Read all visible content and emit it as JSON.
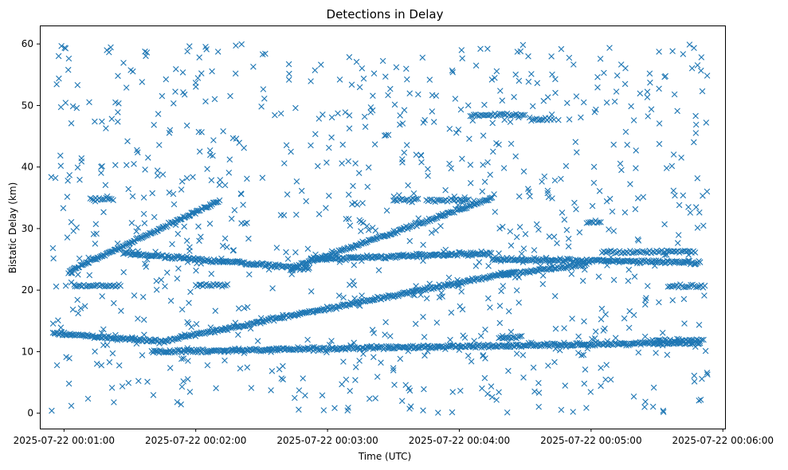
{
  "chart_data": {
    "type": "scatter",
    "title": "Detections in Delay",
    "xlabel": "Time (UTC)",
    "ylabel": "Bistatic Delay (km)",
    "marker": "x",
    "color": "#1f77b4",
    "grid": false,
    "legend": "none",
    "x_axis_type": "datetime",
    "xlim": [
      "2025-07-22 00:00:49",
      "2025-07-22 00:06:01"
    ],
    "ylim": [
      -2.5,
      63
    ],
    "x_ticks": [
      "2025-07-22 00:01:00",
      "2025-07-22 00:02:00",
      "2025-07-22 00:03:00",
      "2025-07-22 00:04:00",
      "2025-07-22 00:05:00",
      "2025-07-22 00:06:00"
    ],
    "y_ticks": [
      0,
      10,
      20,
      30,
      40,
      50,
      60
    ],
    "tracks": [
      {
        "x_start": "2025-07-22 00:01:02",
        "x_end": "2025-07-22 00:02:11",
        "y_start": 23.0,
        "y_end": 34.5
      },
      {
        "x_start": "2025-07-22 00:02:43",
        "x_end": "2025-07-22 00:04:15",
        "y_start": 23.5,
        "y_end": 35.0
      },
      {
        "x_start": "2025-07-22 00:00:55",
        "x_end": "2025-07-22 00:01:46",
        "y_start": 13.0,
        "y_end": 11.6
      },
      {
        "x_start": "2025-07-22 00:01:46",
        "x_end": "2025-07-22 00:04:25",
        "y_start": 11.8,
        "y_end": 23.0
      },
      {
        "x_start": "2025-07-22 00:04:20",
        "x_end": "2025-07-22 00:04:58",
        "y_start": 22.5,
        "y_end": 24.2
      },
      {
        "x_start": "2025-07-22 00:01:27",
        "x_end": "2025-07-22 00:02:52",
        "y_start": 26.0,
        "y_end": 23.5
      },
      {
        "x_start": "2025-07-22 00:02:52",
        "x_end": "2025-07-22 00:04:15",
        "y_start": 25.0,
        "y_end": 26.0
      },
      {
        "x_start": "2025-07-22 00:04:15",
        "x_end": "2025-07-22 00:05:50",
        "y_start": 25.0,
        "y_end": 24.5
      },
      {
        "x_start": "2025-07-22 00:01:40",
        "x_end": "2025-07-22 00:05:50",
        "y_start": 10.0,
        "y_end": 11.5
      }
    ],
    "segments": [
      {
        "x_start": "2025-07-22 00:01:12",
        "x_end": "2025-07-22 00:01:23",
        "y": 34.8
      },
      {
        "x_start": "2025-07-22 00:01:05",
        "x_end": "2025-07-22 00:01:25",
        "y": 20.7
      },
      {
        "x_start": "2025-07-22 00:02:00",
        "x_end": "2025-07-22 00:02:15",
        "y": 20.8
      },
      {
        "x_start": "2025-07-22 00:03:30",
        "x_end": "2025-07-22 00:03:42",
        "y": 34.7
      },
      {
        "x_start": "2025-07-22 00:03:45",
        "x_end": "2025-07-22 00:04:05",
        "y": 34.6
      },
      {
        "x_start": "2025-07-22 00:04:05",
        "x_end": "2025-07-22 00:04:30",
        "y": 48.5
      },
      {
        "x_start": "2025-07-22 00:04:32",
        "x_end": "2025-07-22 00:04:42",
        "y": 47.8
      },
      {
        "x_start": "2025-07-22 00:04:58",
        "x_end": "2025-07-22 00:05:05",
        "y": 31.0
      },
      {
        "x_start": "2025-07-22 00:05:05",
        "x_end": "2025-07-22 00:05:48",
        "y": 26.2
      },
      {
        "x_start": "2025-07-22 00:05:35",
        "x_end": "2025-07-22 00:05:52",
        "y": 20.6
      },
      {
        "x_start": "2025-07-22 00:04:18",
        "x_end": "2025-07-22 00:04:28",
        "y": 12.3
      },
      {
        "x_start": "2025-07-22 00:05:28",
        "x_end": "2025-07-22 00:05:52",
        "y": 11.8
      }
    ],
    "background_noise": {
      "y_range": [
        0,
        60
      ],
      "description": "scattered uniform false detections"
    }
  }
}
